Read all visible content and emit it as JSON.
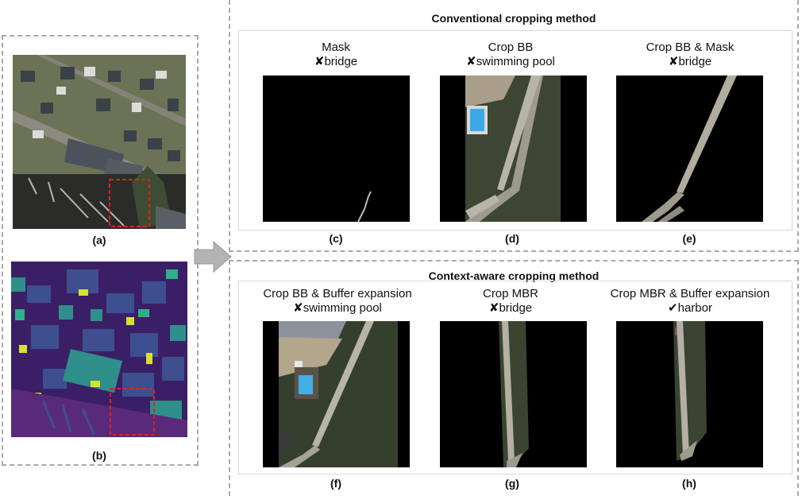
{
  "left": {
    "a_label": "(a)",
    "b_label": "(b)"
  },
  "conventional": {
    "title": "Conventional cropping method",
    "panels": [
      {
        "line1": "Mask",
        "mark": "✘",
        "line2": "bridge",
        "letter": "(c)"
      },
      {
        "line1": "Crop BB",
        "mark": "✘",
        "line2": "swimming pool",
        "letter": "(d)"
      },
      {
        "line1": "Crop BB & Mask",
        "mark": "✘",
        "line2": "bridge",
        "letter": "(e)"
      }
    ]
  },
  "context": {
    "title": "Context-aware cropping method",
    "panels": [
      {
        "line1": "Crop BB & Buffer expansion",
        "mark": "✘",
        "line2": "swimming pool",
        "letter": "(f)"
      },
      {
        "line1": "Crop MBR",
        "mark": "✘",
        "line2": "bridge",
        "letter": "(g)"
      },
      {
        "line1": "Crop MBR & Buffer expansion",
        "mark": "✔",
        "line2": "harbor",
        "letter": "(h)"
      }
    ]
  },
  "colors": {
    "dash_border": "#a9a9a9",
    "bbox_red": "#e02020",
    "arrow_gray": "#b3b3b3"
  },
  "icons": [
    "cross-mark-icon",
    "check-mark-icon",
    "right-arrow-icon"
  ]
}
